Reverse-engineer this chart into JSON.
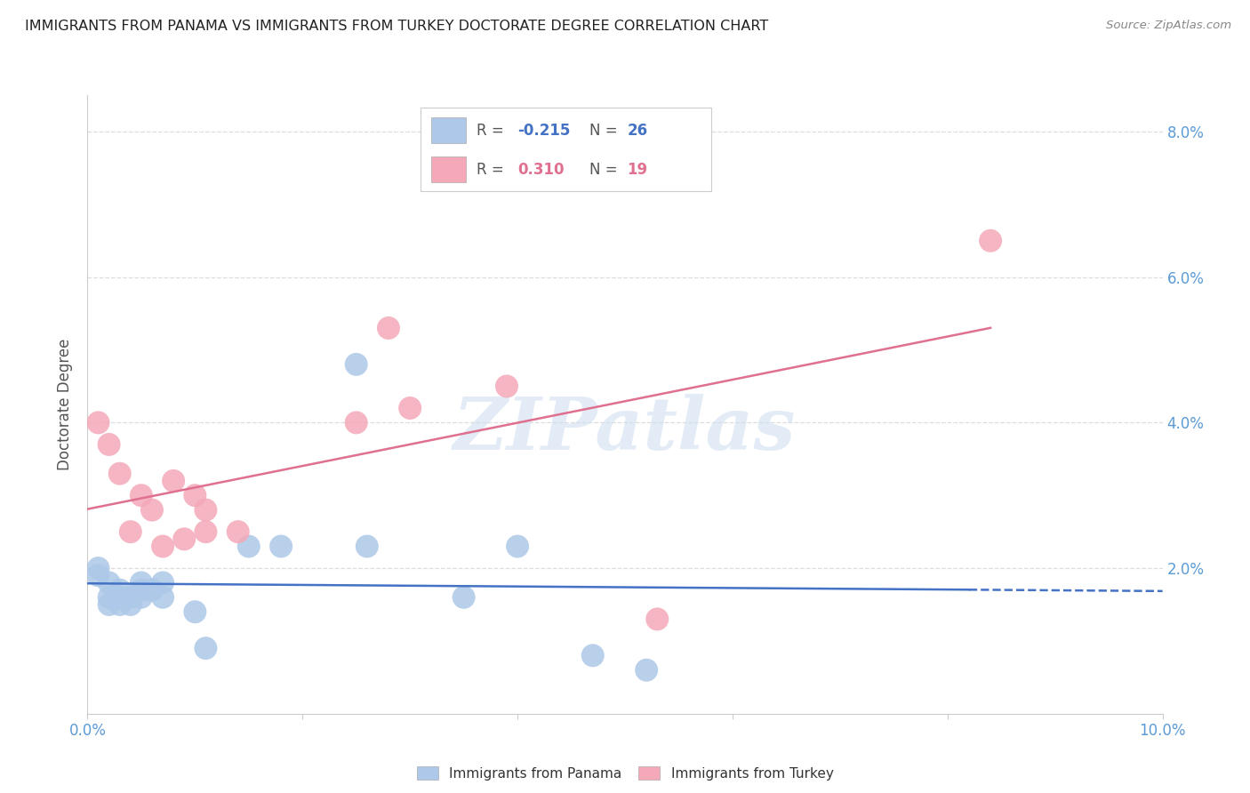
{
  "title": "IMMIGRANTS FROM PANAMA VS IMMIGRANTS FROM TURKEY DOCTORATE DEGREE CORRELATION CHART",
  "source": "Source: ZipAtlas.com",
  "ylabel": "Doctorate Degree",
  "xlim": [
    0,
    0.1
  ],
  "ylim": [
    0,
    0.085
  ],
  "panama_r": -0.215,
  "panama_n": 26,
  "turkey_r": 0.31,
  "turkey_n": 19,
  "panama_color": "#adc8e8",
  "turkey_color": "#f4a8b8",
  "panama_line_color": "#4472c4",
  "turkey_line_color": "#e07090",
  "panama_points": [
    [
      0.001,
      0.02
    ],
    [
      0.001,
      0.019
    ],
    [
      0.002,
      0.018
    ],
    [
      0.002,
      0.016
    ],
    [
      0.002,
      0.015
    ],
    [
      0.003,
      0.017
    ],
    [
      0.003,
      0.016
    ],
    [
      0.003,
      0.015
    ],
    [
      0.004,
      0.016
    ],
    [
      0.004,
      0.015
    ],
    [
      0.005,
      0.016
    ],
    [
      0.005,
      0.017
    ],
    [
      0.005,
      0.018
    ],
    [
      0.006,
      0.017
    ],
    [
      0.007,
      0.018
    ],
    [
      0.007,
      0.016
    ],
    [
      0.01,
      0.014
    ],
    [
      0.011,
      0.009
    ],
    [
      0.015,
      0.023
    ],
    [
      0.018,
      0.023
    ],
    [
      0.025,
      0.048
    ],
    [
      0.026,
      0.023
    ],
    [
      0.035,
      0.016
    ],
    [
      0.04,
      0.023
    ],
    [
      0.047,
      0.008
    ],
    [
      0.052,
      0.006
    ]
  ],
  "turkey_points": [
    [
      0.001,
      0.04
    ],
    [
      0.002,
      0.037
    ],
    [
      0.003,
      0.033
    ],
    [
      0.004,
      0.025
    ],
    [
      0.005,
      0.03
    ],
    [
      0.006,
      0.028
    ],
    [
      0.007,
      0.023
    ],
    [
      0.008,
      0.032
    ],
    [
      0.009,
      0.024
    ],
    [
      0.01,
      0.03
    ],
    [
      0.011,
      0.028
    ],
    [
      0.011,
      0.025
    ],
    [
      0.014,
      0.025
    ],
    [
      0.025,
      0.04
    ],
    [
      0.028,
      0.053
    ],
    [
      0.03,
      0.042
    ],
    [
      0.039,
      0.045
    ],
    [
      0.053,
      0.013
    ],
    [
      0.084,
      0.065
    ]
  ],
  "background_color": "#ffffff",
  "grid_color": "#dddddd",
  "title_color": "#222222",
  "axis_tick_color": "#5b9bd5",
  "watermark": "ZIPatlas"
}
